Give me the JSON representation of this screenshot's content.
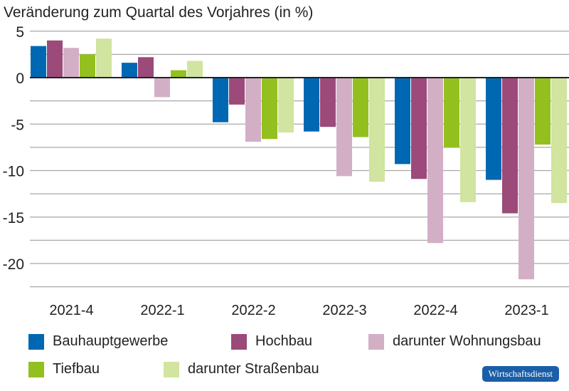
{
  "chart_data": {
    "type": "bar",
    "title": "Veränderung zum Quartal des Vorjahres (in %)",
    "categories": [
      "2021-4",
      "2022-1",
      "2022-2",
      "2022-3",
      "2022-4",
      "2023-1"
    ],
    "series": [
      {
        "name": "Bauhauptgewerbe",
        "color": "#0068b2",
        "values": [
          3.4,
          1.6,
          -4.8,
          -5.8,
          -9.3,
          -11.0
        ]
      },
      {
        "name": "Hochbau",
        "color": "#9b4a7a",
        "values": [
          4.0,
          2.2,
          -2.9,
          -5.3,
          -10.9,
          -14.6
        ]
      },
      {
        "name": "darunter Wohnungsbau",
        "color": "#d3afc6",
        "values": [
          3.2,
          -2.1,
          -6.9,
          -10.6,
          -17.8,
          -21.7
        ]
      },
      {
        "name": "Tiefbau",
        "color": "#93c01f",
        "values": [
          2.5,
          0.8,
          -6.6,
          -6.4,
          -7.5,
          -7.2
        ]
      },
      {
        "name": "darunter Straßenbau",
        "color": "#d1e4a0",
        "values": [
          4.2,
          1.8,
          -5.9,
          -11.2,
          -13.4,
          -13.5
        ]
      }
    ],
    "ylim": [
      -22.5,
      5
    ],
    "yticks": [
      5,
      0,
      -5,
      -10,
      -15,
      -20
    ],
    "grid": true,
    "legend": "bottom"
  },
  "logo": "Wirtschaftsdienst"
}
